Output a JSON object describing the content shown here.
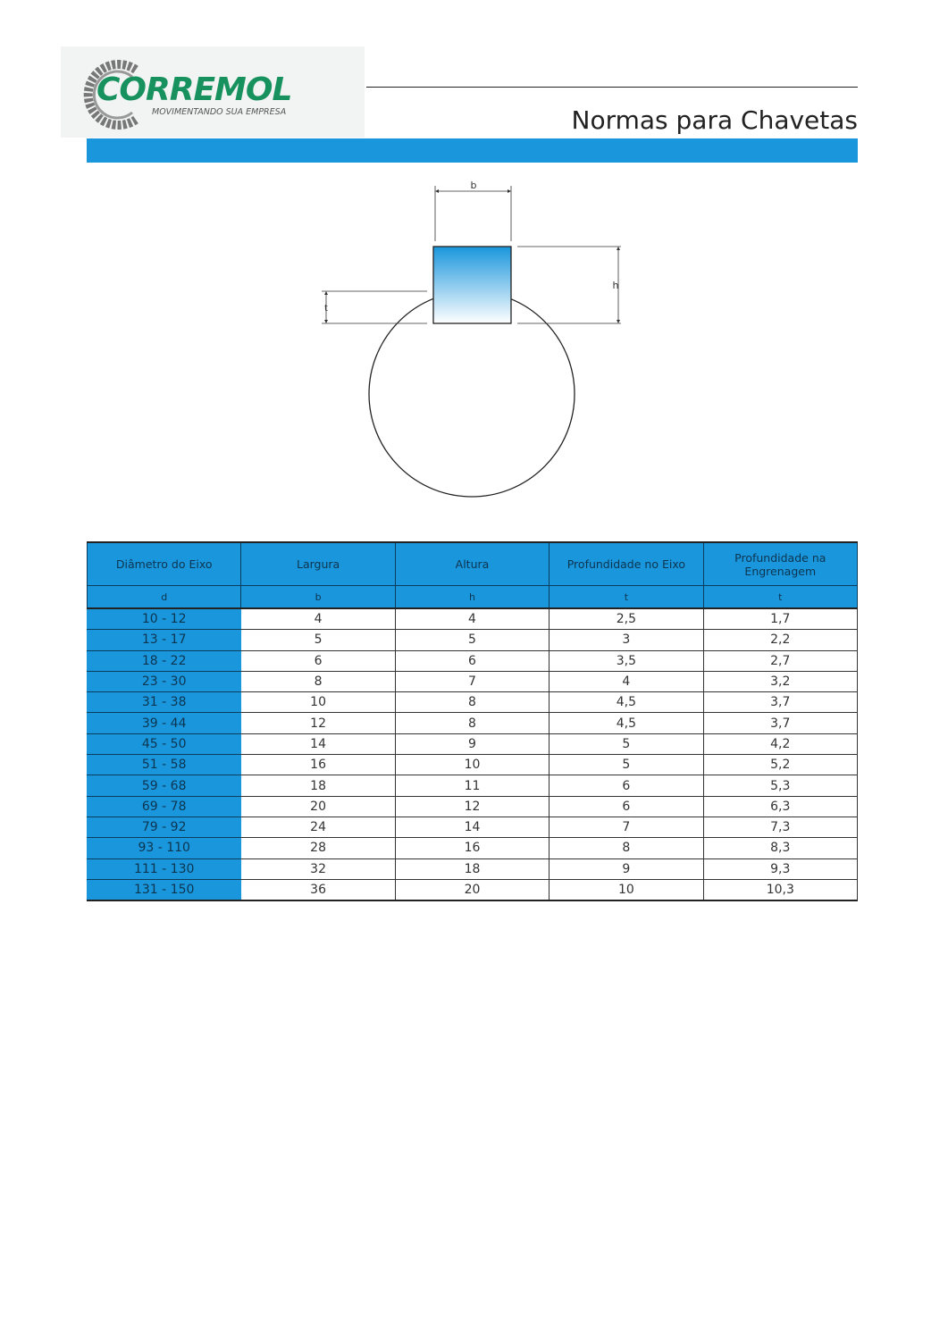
{
  "logo": {
    "name": "CORREMOL",
    "tagline": "MOVIMENTANDO SUA EMPRESA",
    "color": "#17915e"
  },
  "title": "Normas para Chavetas",
  "accent": "#1a96dc",
  "diagram": {
    "label_b": "b",
    "label_h": "h",
    "label_t": "t"
  },
  "table": {
    "headers": [
      "Diâmetro do Eixo",
      "Largura",
      "Altura",
      "Profundidade no Eixo",
      "Profundidade na Engrenagem"
    ],
    "symbols": [
      "d",
      "b",
      "h",
      "t",
      "t"
    ],
    "rows": [
      [
        "10 - 12",
        "4",
        "4",
        "2,5",
        "1,7"
      ],
      [
        "13 - 17",
        "5",
        "5",
        "3",
        "2,2"
      ],
      [
        "18 - 22",
        "6",
        "6",
        "3,5",
        "2,7"
      ],
      [
        "23 - 30",
        "8",
        "7",
        "4",
        "3,2"
      ],
      [
        "31 - 38",
        "10",
        "8",
        "4,5",
        "3,7"
      ],
      [
        "39 - 44",
        "12",
        "8",
        "4,5",
        "3,7"
      ],
      [
        "45 - 50",
        "14",
        "9",
        "5",
        "4,2"
      ],
      [
        "51 - 58",
        "16",
        "10",
        "5",
        "5,2"
      ],
      [
        "59 - 68",
        "18",
        "11",
        "6",
        "5,3"
      ],
      [
        "69 - 78",
        "20",
        "12",
        "6",
        "6,3"
      ],
      [
        "79 - 92",
        "24",
        "14",
        "7",
        "7,3"
      ],
      [
        "93 - 110",
        "28",
        "16",
        "8",
        "8,3"
      ],
      [
        "111 - 130",
        "32",
        "18",
        "9",
        "9,3"
      ],
      [
        "131 - 150",
        "36",
        "20",
        "10",
        "10,3"
      ]
    ]
  }
}
